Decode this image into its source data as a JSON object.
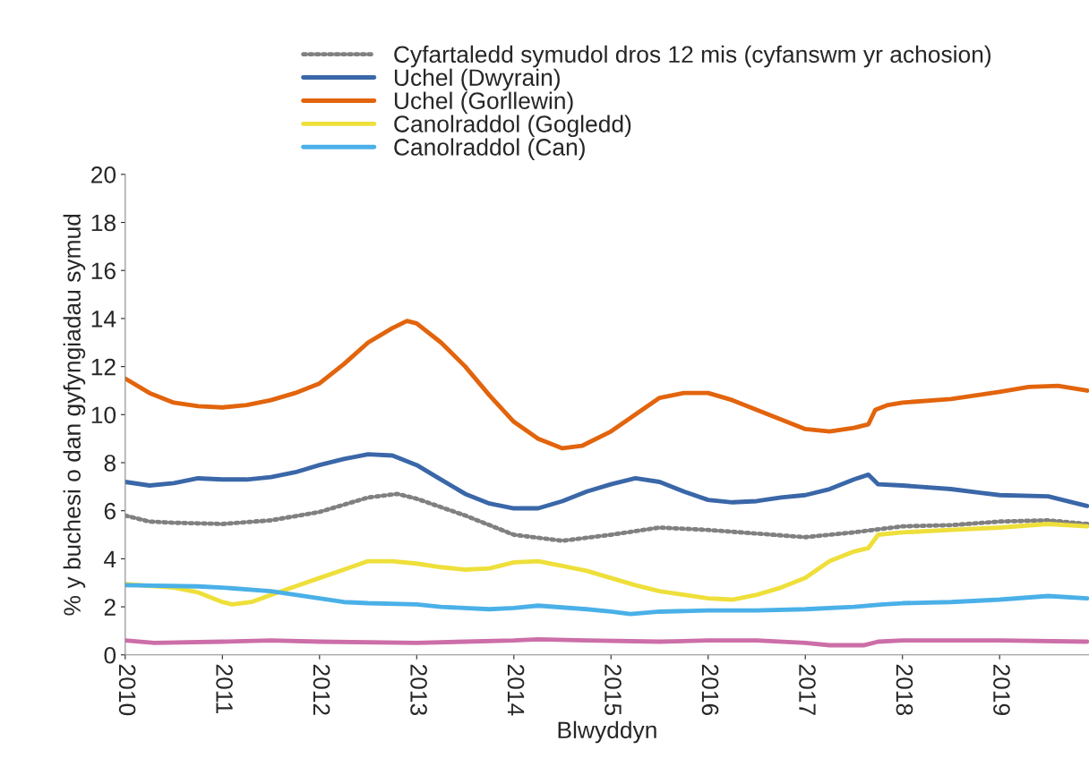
{
  "chart_data": {
    "type": "line",
    "xlabel": "Blwyddyn",
    "ylabel": "% y buchesi o dan gyfyngiadau symud",
    "xlim": [
      2010,
      2019.92
    ],
    "xticks": [
      {
        "value": 2010,
        "label": "2010"
      },
      {
        "value": 2011,
        "label": "2011"
      },
      {
        "value": 2012,
        "label": "2012"
      },
      {
        "value": 2013,
        "label": "2013"
      },
      {
        "value": 2014,
        "label": "2014"
      },
      {
        "value": 2015,
        "label": "2015"
      },
      {
        "value": 2016,
        "label": "2016"
      },
      {
        "value": 2017,
        "label": "2017"
      },
      {
        "value": 2018,
        "label": "2018"
      },
      {
        "value": 2019,
        "label": "2019"
      }
    ],
    "ylim": [
      0,
      20
    ],
    "yticks": [
      0,
      2,
      4,
      6,
      8,
      10,
      12,
      14,
      16,
      18,
      20
    ],
    "grid": false,
    "legend": "top",
    "series": [
      {
        "name": "Cyfartaledd symudol dros 12 mis (cyfanswm yr achosion)",
        "color": "#808080",
        "line_style": "dotted",
        "x": [
          2010,
          2010.25,
          2010.5,
          2011,
          2011.5,
          2012,
          2012.5,
          2012.8,
          2013,
          2013.5,
          2014,
          2014.5,
          2015,
          2015.5,
          2016,
          2016.5,
          2017,
          2017.5,
          2018,
          2018.5,
          2019,
          2019.5,
          2019.9
        ],
        "values": [
          5.8,
          5.55,
          5.5,
          5.45,
          5.6,
          5.95,
          6.55,
          6.7,
          6.5,
          5.8,
          5.0,
          4.75,
          5.0,
          5.3,
          5.2,
          5.05,
          4.9,
          5.1,
          5.35,
          5.4,
          5.55,
          5.6,
          5.45
        ]
      },
      {
        "name": "Uchel (Dwyrain)",
        "color": "#3a67a8",
        "x": [
          2010,
          2010.25,
          2010.5,
          2010.75,
          2011,
          2011.25,
          2011.5,
          2011.75,
          2012,
          2012.25,
          2012.5,
          2012.75,
          2013,
          2013.25,
          2013.5,
          2013.75,
          2014,
          2014.25,
          2014.5,
          2014.75,
          2015,
          2015.25,
          2015.5,
          2015.75,
          2016,
          2016.25,
          2016.5,
          2016.75,
          2017,
          2017.25,
          2017.5,
          2017.65,
          2017.75,
          2018,
          2018.5,
          2018.8,
          2019,
          2019.5,
          2019.75,
          2019.9
        ],
        "values": [
          7.2,
          7.05,
          7.15,
          7.35,
          7.3,
          7.3,
          7.4,
          7.6,
          7.9,
          8.15,
          8.35,
          8.3,
          7.9,
          7.3,
          6.7,
          6.3,
          6.1,
          6.1,
          6.4,
          6.8,
          7.1,
          7.35,
          7.2,
          6.8,
          6.45,
          6.35,
          6.4,
          6.55,
          6.65,
          6.9,
          7.3,
          7.5,
          7.1,
          7.05,
          6.9,
          6.75,
          6.65,
          6.6,
          6.35,
          6.2
        ]
      },
      {
        "name": "Uchel (Gorllewin)",
        "color": "#e2640c",
        "x": [
          2010,
          2010.25,
          2010.5,
          2010.75,
          2011,
          2011.25,
          2011.5,
          2011.75,
          2012,
          2012.25,
          2012.5,
          2012.75,
          2012.9,
          2013,
          2013.25,
          2013.5,
          2013.75,
          2014,
          2014.25,
          2014.5,
          2014.7,
          2015,
          2015.25,
          2015.5,
          2015.75,
          2016,
          2016.25,
          2016.5,
          2016.75,
          2017,
          2017.25,
          2017.5,
          2017.65,
          2017.72,
          2017.85,
          2018,
          2018.5,
          2019,
          2019.3,
          2019.6,
          2019.9
        ],
        "values": [
          11.5,
          10.9,
          10.5,
          10.35,
          10.3,
          10.4,
          10.6,
          10.9,
          11.3,
          12.1,
          13.0,
          13.6,
          13.9,
          13.8,
          13.0,
          12.0,
          10.8,
          9.7,
          9.0,
          8.6,
          8.7,
          9.3,
          10.0,
          10.7,
          10.9,
          10.9,
          10.6,
          10.2,
          9.8,
          9.4,
          9.3,
          9.45,
          9.6,
          10.2,
          10.4,
          10.5,
          10.65,
          10.95,
          11.15,
          11.2,
          11.0
        ]
      },
      {
        "name": "Canolraddol (Gogledd)",
        "color": "#eedf3a",
        "x": [
          2010,
          2010.5,
          2010.75,
          2011,
          2011.1,
          2011.3,
          2011.5,
          2011.75,
          2012,
          2012.25,
          2012.5,
          2012.75,
          2013,
          2013.25,
          2013.5,
          2013.75,
          2014,
          2014.25,
          2014.5,
          2014.75,
          2015,
          2015.25,
          2015.5,
          2015.75,
          2016,
          2016.25,
          2016.5,
          2016.75,
          2017,
          2017.25,
          2017.5,
          2017.65,
          2017.75,
          2018,
          2018.5,
          2019,
          2019.5,
          2019.9
        ],
        "values": [
          2.95,
          2.8,
          2.6,
          2.2,
          2.1,
          2.2,
          2.5,
          2.85,
          3.2,
          3.55,
          3.9,
          3.9,
          3.8,
          3.65,
          3.55,
          3.6,
          3.85,
          3.9,
          3.7,
          3.5,
          3.2,
          2.9,
          2.65,
          2.5,
          2.35,
          2.3,
          2.5,
          2.8,
          3.2,
          3.9,
          4.3,
          4.45,
          5.0,
          5.1,
          5.2,
          5.3,
          5.45,
          5.35
        ]
      },
      {
        "name": "Canolraddol (Can)",
        "color": "#4ab0e8",
        "x": [
          2010,
          2010.75,
          2011,
          2011.5,
          2011.75,
          2012,
          2012.25,
          2012.5,
          2013,
          2013.25,
          2013.75,
          2014,
          2014.25,
          2014.75,
          2015,
          2015.2,
          2015.5,
          2016,
          2016.5,
          2017,
          2017.5,
          2017.8,
          2018,
          2018.5,
          2019,
          2019.5,
          2019.9
        ],
        "values": [
          2.9,
          2.85,
          2.8,
          2.65,
          2.5,
          2.35,
          2.2,
          2.15,
          2.1,
          2.0,
          1.9,
          1.95,
          2.05,
          1.9,
          1.8,
          1.7,
          1.8,
          1.85,
          1.85,
          1.9,
          2.0,
          2.1,
          2.15,
          2.2,
          2.3,
          2.45,
          2.35
        ]
      },
      {
        "color": "#cc6ea8",
        "x": [
          2010,
          2010.3,
          2011,
          2011.5,
          2012,
          2013,
          2013.5,
          2014,
          2014.25,
          2014.75,
          2015.5,
          2016,
          2016.5,
          2017,
          2017.25,
          2017.6,
          2017.75,
          2018,
          2018.5,
          2019,
          2019.9
        ],
        "values": [
          0.6,
          0.5,
          0.55,
          0.6,
          0.55,
          0.5,
          0.55,
          0.6,
          0.65,
          0.6,
          0.55,
          0.6,
          0.6,
          0.5,
          0.4,
          0.4,
          0.55,
          0.6,
          0.6,
          0.6,
          0.55
        ]
      }
    ]
  }
}
